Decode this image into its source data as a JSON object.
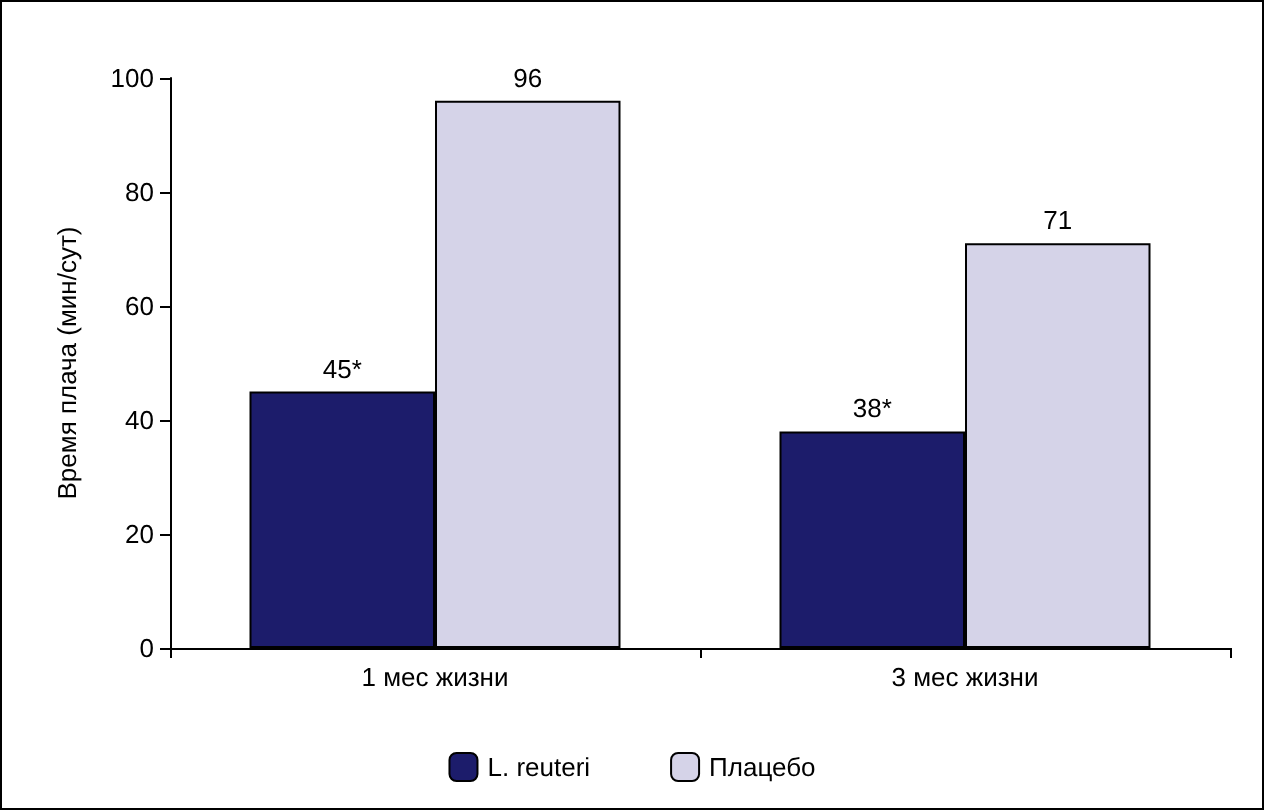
{
  "chart_data": {
    "type": "bar",
    "ylabel": "Время плача (мин/сут)",
    "categories": [
      "1 мес жизни",
      "3 мес жизни"
    ],
    "series": [
      {
        "name": "L. reuteri",
        "color": "#1c1c6b",
        "values": [
          45,
          38
        ],
        "value_labels": [
          "45*",
          "38*"
        ]
      },
      {
        "name": "Плацебо",
        "color": "#d5d3e8",
        "values": [
          96,
          71
        ],
        "value_labels": [
          "96",
          "71"
        ]
      }
    ],
    "ylim": [
      0,
      100
    ],
    "yticks": [
      0,
      20,
      40,
      60,
      80,
      100
    ],
    "grid": false,
    "legend": "bottom"
  }
}
